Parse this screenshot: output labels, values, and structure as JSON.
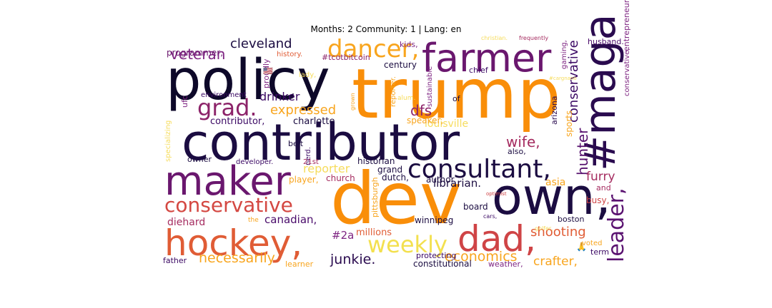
{
  "chart_data": {
    "type": "wordcloud",
    "title": "Months: 2 Community: 1 | Lang: en",
    "colormap": [
      "#000004",
      "#1b0c41",
      "#4a0c6b",
      "#781c6d",
      "#a52c60",
      "#cf4446",
      "#ed6925",
      "#fb9b06",
      "#f7d13d",
      "#fcffa4"
    ],
    "words": [
      {
        "text": "trump",
        "rank": 1,
        "color": "#f98e09"
      },
      {
        "text": "contributor",
        "rank": 2,
        "color": "#1b0c41"
      },
      {
        "text": "policy",
        "rank": 3,
        "color": "#0d0829"
      },
      {
        "text": "dev",
        "rank": 4,
        "color": "#f98e09"
      },
      {
        "text": "maker",
        "rank": 5,
        "color": "#6a176e"
      },
      {
        "text": "own,",
        "rank": 6,
        "color": "#1b0c41"
      },
      {
        "text": "#maga",
        "rank": 7,
        "color": "#2a0b4f"
      },
      {
        "text": "hockey,",
        "rank": 8,
        "color": "#e05c35"
      },
      {
        "text": "farmer",
        "rank": 9,
        "color": "#6a176e"
      },
      {
        "text": "dad,",
        "rank": 10,
        "color": "#cf4446"
      },
      {
        "text": "consultant,",
        "rank": 11,
        "color": "#1b0c41"
      },
      {
        "text": "dancer,",
        "rank": 12,
        "color": "#f8a51e"
      },
      {
        "text": "leader,",
        "rank": 13,
        "color": "#5a1270"
      },
      {
        "text": "conservative",
        "rank": 14,
        "color": "#d44842"
      },
      {
        "text": "weekly",
        "rank": 15,
        "color": "#f3e04f"
      },
      {
        "text": "grad.",
        "rank": 16,
        "color": "#8c2369"
      },
      {
        "text": "hunter",
        "rank": 17,
        "color": "#56106e"
      },
      {
        "text": "veteran",
        "rank": 18,
        "color": "#7e2482"
      },
      {
        "text": "cleveland",
        "rank": 19,
        "color": "#1b0c41"
      },
      {
        "text": "expressed",
        "rank": 20,
        "color": "#f8a51e"
      },
      {
        "text": "conservative",
        "rank": 21,
        "color": "#3b0964"
      },
      {
        "text": "shooting",
        "rank": 22,
        "color": "#e05c35"
      },
      {
        "text": "necessarily",
        "rank": 23,
        "color": "#f8a51e"
      },
      {
        "text": "economics",
        "rank": 24,
        "color": "#f8a51e"
      },
      {
        "text": "wife,",
        "rank": 25,
        "color": "#a52c60"
      },
      {
        "text": "furry",
        "rank": 26,
        "color": "#a52c60"
      },
      {
        "text": "canadian,",
        "rank": 27,
        "color": "#4a0c6b"
      },
      {
        "text": "junkie.",
        "rank": 28,
        "color": "#2a0b4f"
      },
      {
        "text": "crafter,",
        "rank": 29,
        "color": "#f8a51e"
      },
      {
        "text": "dfs",
        "rank": 30,
        "color": "#8c2369"
      },
      {
        "text": "drinker",
        "rank": 31,
        "color": "#3b0964"
      },
      {
        "text": "diehard",
        "rank": 32,
        "color": "#a52c60"
      },
      {
        "text": "reporter",
        "rank": 33,
        "color": "#f6dc5c"
      },
      {
        "text": "#2a",
        "rank": 34,
        "color": "#7e2482"
      },
      {
        "text": "millions",
        "rank": 35,
        "color": "#e05c35"
      },
      {
        "text": "librarian.",
        "rank": 36,
        "color": "#1b0c41"
      },
      {
        "text": "louisville",
        "rank": 37,
        "color": "#f6dc5c"
      },
      {
        "text": "contributor,",
        "rank": 38,
        "color": "#3b0964"
      },
      {
        "text": "charlotte",
        "rank": 39,
        "color": "#1b0c41"
      },
      {
        "text": "programmer,",
        "rank": 40,
        "color": "#6a176e"
      },
      {
        "text": "century",
        "rank": 41,
        "color": "#1b0c41"
      },
      {
        "text": "husband.",
        "rank": 42,
        "color": "#4a0c6b"
      },
      {
        "text": "entrepreneur.",
        "rank": 43,
        "color": "#7e2482"
      },
      {
        "text": "conservative,",
        "rank": 44,
        "color": "#7e2482"
      },
      {
        "text": "sports",
        "rank": 45,
        "color": "#f8a51e"
      },
      {
        "text": "arizona",
        "rank": 46,
        "color": "#2a0b4f"
      },
      {
        "text": "historian",
        "rank": 47,
        "color": "#1b0c41"
      },
      {
        "text": "grand",
        "rank": 48,
        "color": "#1b0c41"
      },
      {
        "text": "dutch,",
        "rank": 49,
        "color": "#1b0c41"
      },
      {
        "text": "church",
        "rank": 50,
        "color": "#a52c60"
      },
      {
        "text": "player,",
        "rank": 51,
        "color": "#f8a51e"
      },
      {
        "text": "author",
        "rank": 52,
        "color": "#1b0c41"
      },
      {
        "text": "asia",
        "rank": 53,
        "color": "#f8a51e"
      },
      {
        "text": "board",
        "rank": 54,
        "color": "#1b0c41"
      },
      {
        "text": "boston",
        "rank": 55,
        "color": "#1b0c41"
      },
      {
        "text": "winnipeg",
        "rank": 56,
        "color": "#1b0c41"
      },
      {
        "text": "pittsburgh",
        "rank": 57,
        "color": "#f8a51e"
      },
      {
        "text": "constitutional",
        "rank": 58,
        "color": "#1b0c41"
      },
      {
        "text": "protecting",
        "rank": 59,
        "color": "#3b0964"
      },
      {
        "text": "father",
        "rank": 60,
        "color": "#3b0964"
      },
      {
        "text": "learner",
        "rank": 61,
        "color": "#f8a51e"
      },
      {
        "text": "weather,",
        "rank": 62,
        "color": "#7e2482"
      },
      {
        "text": "term",
        "rank": 63,
        "color": "#3b0964"
      },
      {
        "text": "voted",
        "rank": 64,
        "color": "#f8a51e"
      },
      {
        "text": "busy,",
        "rank": 65,
        "color": "#cf4446"
      },
      {
        "text": "and",
        "rank": 66,
        "color": "#a52c60"
      },
      {
        "text": "also,",
        "rank": 67,
        "color": "#1b0c41"
      },
      {
        "text": "speaker,",
        "rank": 68,
        "color": "#f8a51e"
      },
      {
        "text": "of",
        "rank": 69,
        "color": "#1b0c41"
      },
      {
        "text": "chief",
        "rank": 70,
        "color": "#3b0964"
      },
      {
        "text": "kids,",
        "rank": 71,
        "color": "#7e2482"
      },
      {
        "text": "#tcotbitcoin",
        "rank": 72,
        "color": "#8c2369"
      },
      {
        "text": "history.",
        "rank": 73,
        "color": "#e05c35"
      },
      {
        "text": "proudly",
        "rank": 74,
        "color": "#7e2482"
      },
      {
        "text": "lady,",
        "rank": 75,
        "color": "#f6dc5c"
      },
      {
        "text": "environment",
        "rank": 76,
        "color": "#3b0964"
      },
      {
        "text": "ufc",
        "rank": 77,
        "color": "#7e2482"
      },
      {
        "text": "belt",
        "rank": 78,
        "color": "#1b0c41"
      },
      {
        "text": "nerd.",
        "rank": 79,
        "color": "#3b0964"
      },
      {
        "text": "21st",
        "rank": 80,
        "color": "#a52c60"
      },
      {
        "text": "owner",
        "rank": 81,
        "color": "#1b0c41"
      },
      {
        "text": "developer.",
        "rank": 82,
        "color": "#3b0964"
      },
      {
        "text": "specializing",
        "rank": 83,
        "color": "#f6dc5c"
      },
      {
        "text": "sustainable",
        "rank": 84,
        "color": "#7e2482"
      },
      {
        "text": "reporter.",
        "rank": 85,
        "color": "#f8a51e"
      },
      {
        "text": "alum.",
        "rank": 86,
        "color": "#f6dc5c"
      },
      {
        "text": "grown",
        "rank": 87,
        "color": "#f8a51e"
      },
      {
        "text": "gaming,",
        "rank": 88,
        "color": "#7e2482"
      },
      {
        "text": "christian.",
        "rank": 89,
        "color": "#f6dc5c"
      },
      {
        "text": "frequently",
        "rank": 90,
        "color": "#a52c60"
      },
      {
        "text": "#cargnano",
        "rank": 91,
        "color": "#f6dc5c"
      },
      {
        "text": "optimist",
        "rank": 92,
        "color": "#cf4446"
      },
      {
        "text": "cars,",
        "rank": 93,
        "color": "#3b0964"
      },
      {
        "text": "golfer,",
        "rank": 94,
        "color": "#f6dc5c"
      },
      {
        "text": "the",
        "rank": 95,
        "color": "#f8a51e"
      },
      {
        "text": "🙏",
        "rank": 96,
        "color": "#f8a51e"
      },
      {
        "text": "🇺🇸",
        "rank": 97,
        "color": "#7e2482"
      }
    ]
  }
}
